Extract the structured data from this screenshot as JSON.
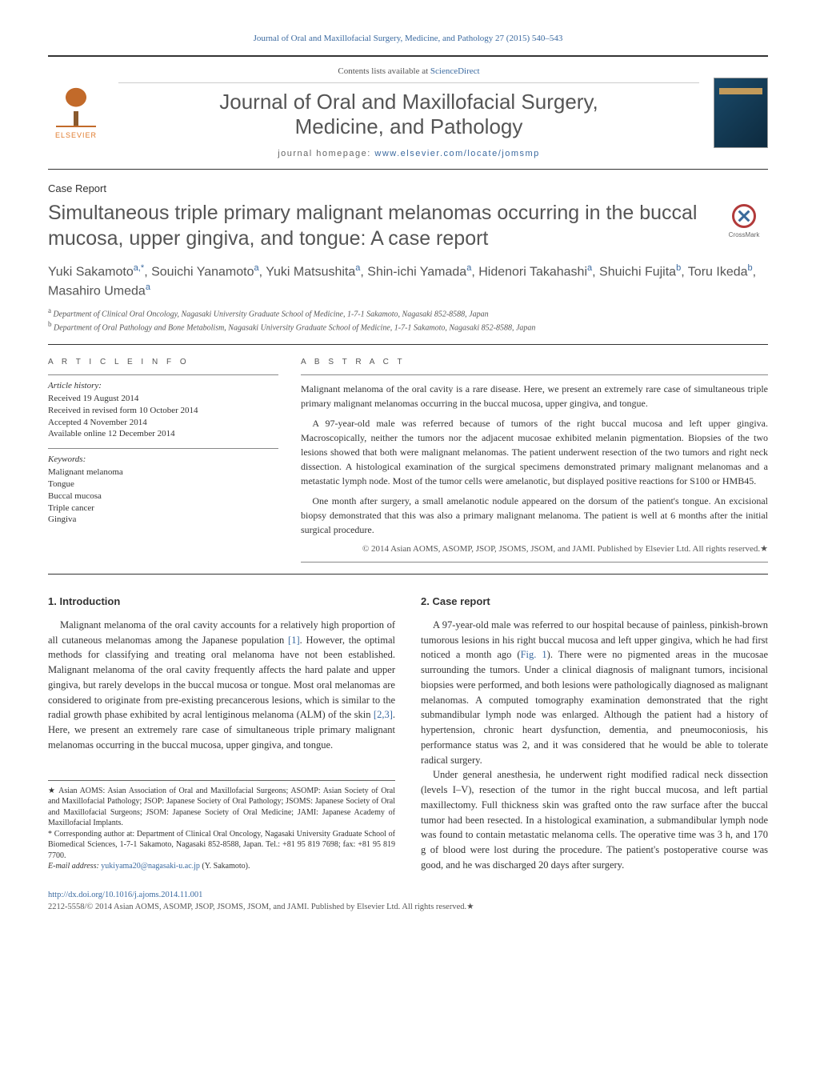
{
  "top_journal_citation": "Journal of Oral and Maxillofacial Surgery, Medicine, and Pathology 27 (2015) 540–543",
  "header": {
    "contents_listed": "Contents lists available at ",
    "contents_link": "ScienceDirect",
    "journal_name_line1": "Journal of Oral and Maxillofacial Surgery,",
    "journal_name_line2": "Medicine, and Pathology",
    "homepage_label": "journal homepage: ",
    "homepage_url": "www.elsevier.com/locate/jomsmp",
    "elsevier_label": "ELSEVIER",
    "crossmark_label": "CrossMark"
  },
  "article": {
    "type": "Case Report",
    "title": "Simultaneous triple primary malignant melanomas occurring in the buccal mucosa, upper gingiva, and tongue: A case report",
    "authors_html": "Yuki Sakamoto<sup>a,*</sup>, Souichi Yanamoto<sup>a</sup>, Yuki Matsushita<sup>a</sup>, Shin-ichi Yamada<sup>a</sup>, Hidenori Takahashi<sup>a</sup>, Shuichi Fujita<sup>b</sup>, Toru Ikeda<sup>b</sup>, Masahiro Umeda<sup>a</sup>"
  },
  "affiliations": {
    "a": "Department of Clinical Oral Oncology, Nagasaki University Graduate School of Medicine, 1-7-1 Sakamoto, Nagasaki 852-8588, Japan",
    "b": "Department of Oral Pathology and Bone Metabolism, Nagasaki University Graduate School of Medicine, 1-7-1 Sakamoto, Nagasaki 852-8588, Japan"
  },
  "info": {
    "section_label": "A R T I C L E   I N F O",
    "history_title": "Article history:",
    "history": {
      "received": "Received 19 August 2014",
      "revised": "Received in revised form 10 October 2014",
      "accepted": "Accepted 4 November 2014",
      "online": "Available online 12 December 2014"
    },
    "keywords_title": "Keywords:",
    "keywords": [
      "Malignant melanoma",
      "Tongue",
      "Buccal mucosa",
      "Triple cancer",
      "Gingiva"
    ]
  },
  "abstract": {
    "section_label": "A B S T R A C T",
    "paras": [
      "Malignant melanoma of the oral cavity is a rare disease. Here, we present an extremely rare case of simultaneous triple primary malignant melanomas occurring in the buccal mucosa, upper gingiva, and tongue.",
      "A 97-year-old male was referred because of tumors of the right buccal mucosa and left upper gingiva. Macroscopically, neither the tumors nor the adjacent mucosae exhibited melanin pigmentation. Biopsies of the two lesions showed that both were malignant melanomas. The patient underwent resection of the two tumors and right neck dissection. A histological examination of the surgical specimens demonstrated primary malignant melanomas and a metastatic lymph node. Most of the tumor cells were amelanotic, but displayed positive reactions for S100 or HMB45.",
      "One month after surgery, a small amelanotic nodule appeared on the dorsum of the patient's tongue. An excisional biopsy demonstrated that this was also a primary malignant melanoma. The patient is well at 6 months after the initial surgical procedure."
    ],
    "copyright": "© 2014 Asian AOMS, ASOMP, JSOP, JSOMS, JSOM, and JAMI. Published by Elsevier Ltd. All rights reserved.★"
  },
  "body": {
    "intro_heading": "1.  Introduction",
    "intro_para": "Malignant melanoma of the oral cavity accounts for a relatively high proportion of all cutaneous melanomas among the Japanese population [1]. However, the optimal methods for classifying and treating oral melanoma have not been established. Malignant melanoma of the oral cavity frequently affects the hard palate and upper gingiva, but rarely develops in the buccal mucosa or tongue. Most oral melanomas are considered to originate from pre-existing precancerous lesions, which is similar to the radial growth phase exhibited by acral lentiginous melanoma (ALM) of the skin [2,3]. Here, we present an extremely rare case of simultaneous triple primary malignant melanomas occurring in the buccal mucosa, upper gingiva, and tongue.",
    "case_heading": "2.  Case report",
    "case_para1": "A 97-year-old male was referred to our hospital because of painless, pinkish-brown tumorous lesions in his right buccal mucosa and left upper gingiva, which he had first noticed a month ago (Fig. 1). There were no pigmented areas in the mucosae surrounding the tumors. Under a clinical diagnosis of malignant tumors, incisional biopsies were performed, and both lesions were pathologically diagnosed as malignant melanomas. A computed tomography examination demonstrated that the right submandibular lymph node was enlarged. Although the patient had a history of hypertension, chronic heart dysfunction, dementia, and pneumoconiosis, his performance status was 2, and it was considered that he would be able to tolerate radical surgery.",
    "case_para2": "Under general anesthesia, he underwent right modified radical neck dissection (levels I–V), resection of the tumor in the right buccal mucosa, and left partial maxillectomy. Full thickness skin was grafted onto the raw surface after the buccal tumor had been resected. In a histological examination, a submandibular lymph node was found to contain metastatic melanoma cells. The operative time was 3 h, and 170 g of blood were lost during the procedure. The patient's postoperative course was good, and he was discharged 20 days after surgery."
  },
  "citations": {
    "c1": "[1]",
    "c23": "[2,3]",
    "fig1": "Fig. 1"
  },
  "footnotes": {
    "star": "★ Asian AOMS: Asian Association of Oral and Maxillofacial Surgeons; ASOMP: Asian Society of Oral and Maxillofacial Pathology; JSOP: Japanese Society of Oral Pathology; JSOMS: Japanese Society of Oral and Maxillofacial Surgeons; JSOM: Japanese Society of Oral Medicine; JAMI: Japanese Academy of Maxillofacial Implants.",
    "corr": "* Corresponding author at: Department of Clinical Oral Oncology, Nagasaki University Graduate School of Biomedical Sciences, 1-7-1 Sakamoto, Nagasaki 852-8588, Japan. Tel.: +81 95 819 7698; fax: +81 95 819 7700.",
    "email_label": "E-mail address: ",
    "email": "yukiyama20@nagasaki-u.ac.jp",
    "email_suffix": " (Y. Sakamoto)."
  },
  "footer": {
    "doi": "http://dx.doi.org/10.1016/j.ajoms.2014.11.001",
    "issn_line": "2212-5558/© 2014 Asian AOMS, ASOMP, JSOP, JSOMS, JSOM, and JAMI. Published by Elsevier Ltd. All rights reserved.★"
  },
  "colors": {
    "link": "#3b6aa0",
    "text": "#333333",
    "muted": "#555555",
    "elsevier_orange": "#e07b2d"
  }
}
